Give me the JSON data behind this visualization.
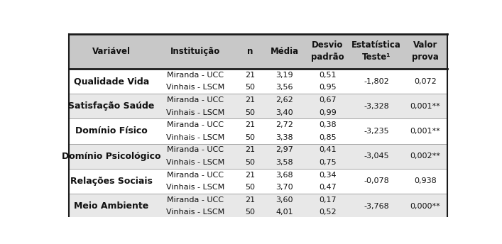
{
  "headers": [
    "Variável",
    "Instituição",
    "n",
    "Média",
    "Desvio\npadrão",
    "Estatística\nTeste¹",
    "Valor\nprova"
  ],
  "groups": [
    {
      "variavel": "Qualidade Vida",
      "row1": [
        "Miranda - UCC",
        "21",
        "3,19",
        "0,51"
      ],
      "row2": [
        "Vinhais - LSCM",
        "50",
        "3,56",
        "0,95"
      ],
      "stat": "-1,802",
      "pval": "0,072",
      "shaded": false
    },
    {
      "variavel": "Satisfação Saúde",
      "row1": [
        "Miranda - UCC",
        "21",
        "2,62",
        "0,67"
      ],
      "row2": [
        "Vinhais - LSCM",
        "50",
        "3,40",
        "0,99"
      ],
      "stat": "-3,328",
      "pval": "0,001**",
      "shaded": true
    },
    {
      "variavel": "Domínio Físico",
      "row1": [
        "Miranda - UCC",
        "21",
        "2,72",
        "0,38"
      ],
      "row2": [
        "Vinhais - LSCM",
        "50",
        "3,38",
        "0,85"
      ],
      "stat": "-3,235",
      "pval": "0,001**",
      "shaded": false
    },
    {
      "variavel": "Domínio Psicológico",
      "row1": [
        "Miranda - UCC",
        "21",
        "2,97",
        "0,41"
      ],
      "row2": [
        "Vinhais - LSCM",
        "50",
        "3,58",
        "0,75"
      ],
      "stat": "-3,045",
      "pval": "0,002**",
      "shaded": true
    },
    {
      "variavel": "Relações Sociais",
      "row1": [
        "Miranda - UCC",
        "21",
        "3,68",
        "0,34"
      ],
      "row2": [
        "Vinhais - LSCM",
        "50",
        "3,70",
        "0,47"
      ],
      "stat": "-0,078",
      "pval": "0,938",
      "shaded": false
    },
    {
      "variavel": "Meio Ambiente",
      "row1": [
        "Miranda - UCC",
        "21",
        "3,60",
        "0,17"
      ],
      "row2": [
        "Vinhais - LSCM",
        "50",
        "4,01",
        "0,52"
      ],
      "stat": "-3,768",
      "pval": "0,000**",
      "shaded": true
    }
  ],
  "bg_shaded": "#e8e8e8",
  "bg_white": "#ffffff",
  "bg_header": "#c8c8c8",
  "border_dark": "#1a1a1a",
  "border_light": "#999999",
  "text_color": "#111111",
  "header_fontsize": 8.5,
  "body_fontsize": 8.0,
  "variavel_fontsize": 9.0
}
